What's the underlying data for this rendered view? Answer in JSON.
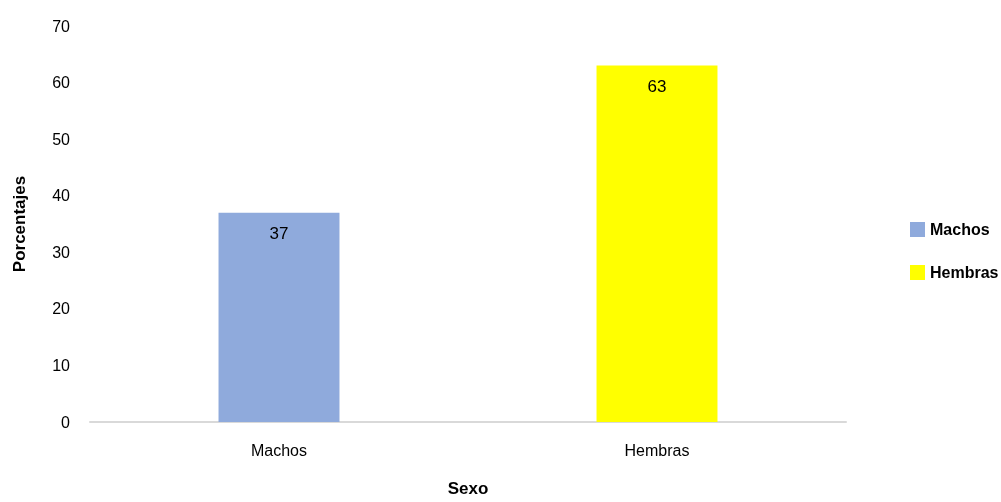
{
  "chart_data": {
    "type": "bar",
    "xlabel": "Sexo",
    "ylabel": "Porcentajes",
    "categories": [
      "Machos",
      "Hembras"
    ],
    "series": [
      {
        "name": "Machos",
        "color": "#8faadc",
        "values": [
          37,
          null
        ]
      },
      {
        "name": "Hembras",
        "color": "#ffff00",
        "values": [
          null,
          63
        ]
      }
    ],
    "ylim": [
      0,
      70
    ],
    "yticks": [
      0,
      10,
      20,
      30,
      40,
      50,
      60,
      70
    ],
    "data_labels": true,
    "legend": "right"
  }
}
